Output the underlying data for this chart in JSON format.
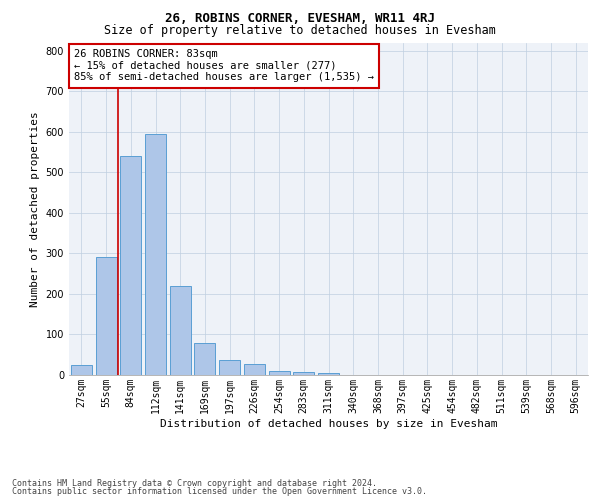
{
  "title": "26, ROBINS CORNER, EVESHAM, WR11 4RJ",
  "subtitle": "Size of property relative to detached houses in Evesham",
  "xlabel": "Distribution of detached houses by size in Evesham",
  "ylabel": "Number of detached properties",
  "categories": [
    "27sqm",
    "55sqm",
    "84sqm",
    "112sqm",
    "141sqm",
    "169sqm",
    "197sqm",
    "226sqm",
    "254sqm",
    "283sqm",
    "311sqm",
    "340sqm",
    "368sqm",
    "397sqm",
    "425sqm",
    "454sqm",
    "482sqm",
    "511sqm",
    "539sqm",
    "568sqm",
    "596sqm"
  ],
  "values": [
    25,
    290,
    540,
    595,
    220,
    78,
    37,
    26,
    11,
    7,
    6,
    0,
    0,
    0,
    0,
    0,
    0,
    0,
    0,
    0,
    0
  ],
  "bar_color": "#aec6e8",
  "bar_edge_color": "#5a9fd4",
  "vline_color": "#cc0000",
  "vline_index": 2,
  "annotation_text": "26 ROBINS CORNER: 83sqm\n← 15% of detached houses are smaller (277)\n85% of semi-detached houses are larger (1,535) →",
  "annotation_box_color": "#ffffff",
  "annotation_box_edgecolor": "#cc0000",
  "ylim": [
    0,
    820
  ],
  "yticks": [
    0,
    100,
    200,
    300,
    400,
    500,
    600,
    700,
    800
  ],
  "bg_color": "#eef2f8",
  "footer_line1": "Contains HM Land Registry data © Crown copyright and database right 2024.",
  "footer_line2": "Contains public sector information licensed under the Open Government Licence v3.0.",
  "title_fontsize": 9,
  "subtitle_fontsize": 8.5,
  "axis_label_fontsize": 8,
  "tick_fontsize": 7,
  "annotation_fontsize": 7.5,
  "footer_fontsize": 6
}
